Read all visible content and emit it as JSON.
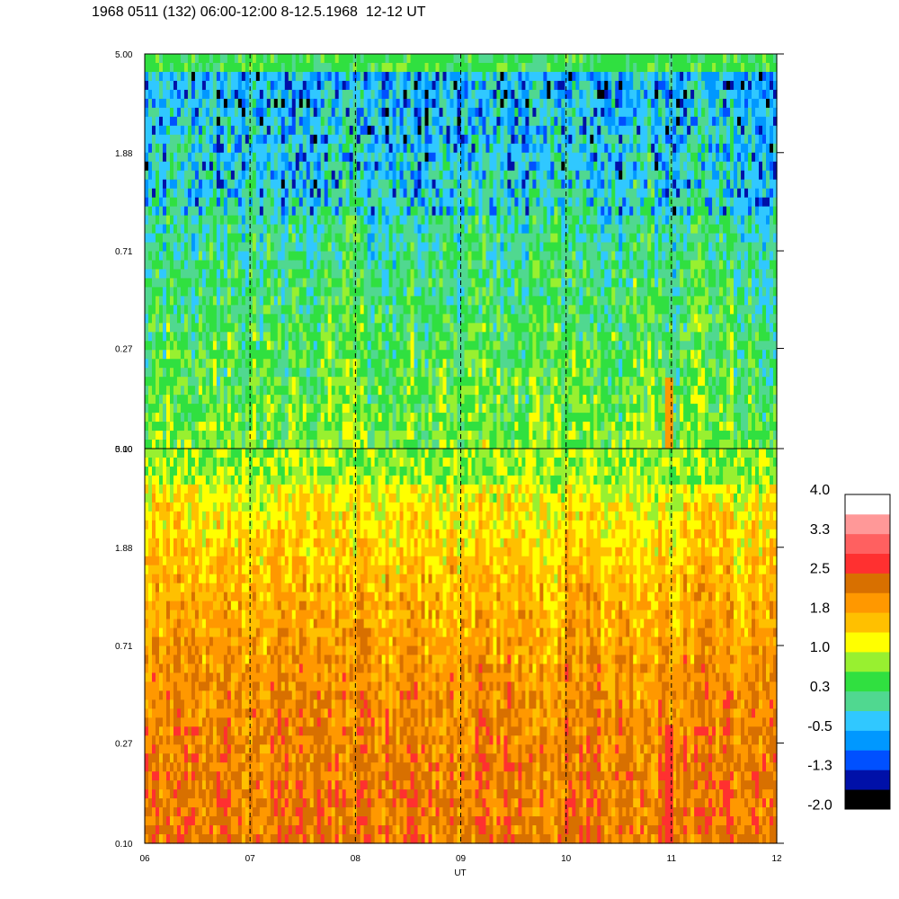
{
  "title": "1968 0511 (132) 06:00-12:00 8-12.5.1968  12-12 UT",
  "chart_data": {
    "type": "heatmap",
    "title": "1968 0511 (132) 06:00-12:00 8-12.5.1968  12-12 UT",
    "xlabel": "UT",
    "x_ticks": [
      "06",
      "07",
      "08",
      "09",
      "10",
      "11",
      "12"
    ],
    "xlim": [
      6,
      12
    ],
    "y_scale": "log",
    "panels": [
      {
        "name": "upper",
        "y_ticks": [
          "0.10",
          "0.27",
          "0.71",
          "1.88",
          "5.00"
        ],
        "ylim": [
          0.1,
          5.0
        ],
        "dominant_levels": "green / yellow-green with blue patches at high frequency",
        "base_level": 0.4
      },
      {
        "name": "lower",
        "y_ticks": [
          "0.10",
          "0.27",
          "0.71",
          "1.88",
          "5.00"
        ],
        "ylim": [
          0.1,
          5.0
        ],
        "dominant_levels": "orange / dark orange with yellow at high frequency",
        "base_level": 1.9
      }
    ],
    "dashed_vertical_lines_at": [
      7,
      8,
      9,
      10,
      11
    ],
    "colorbar": {
      "labels": [
        "4.0",
        "3.3",
        "2.5",
        "1.8",
        "1.0",
        "0.3",
        "-0.5",
        "-1.3",
        "-2.0"
      ],
      "range": [
        -2.0,
        4.0
      ],
      "colors": [
        "#000000",
        "#0010a8",
        "#0050ff",
        "#0098ff",
        "#30c8ff",
        "#50d890",
        "#30e040",
        "#98f030",
        "#ffff00",
        "#ffc000",
        "#ff9800",
        "#d87000",
        "#ff3030",
        "#ff6060",
        "#ff9898",
        "#ffffff"
      ]
    }
  }
}
